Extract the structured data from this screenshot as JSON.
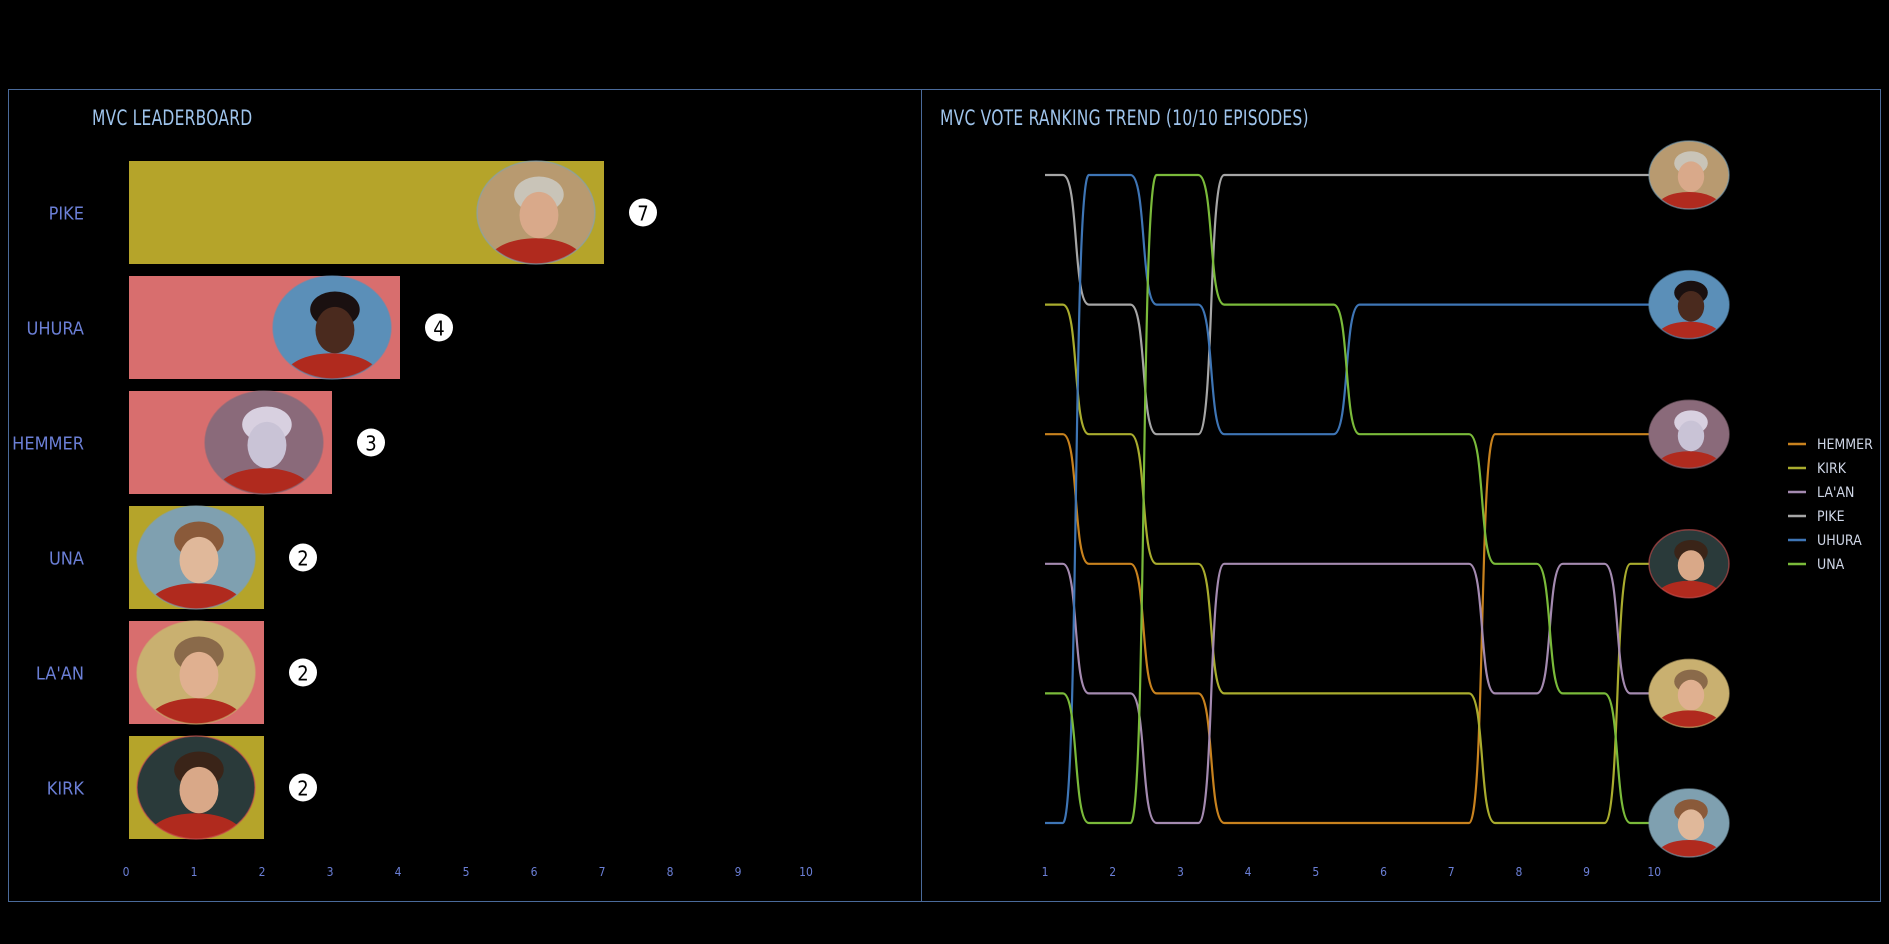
{
  "leaderboard": {
    "title": "MVC LEADERBOARD",
    "chart_data": {
      "type": "bar",
      "orientation": "horizontal",
      "categories": [
        "PIKE",
        "UHURA",
        "HEMMER",
        "UNA",
        "LA'AN",
        "KIRK"
      ],
      "values": [
        7,
        4,
        3,
        2,
        2,
        2
      ],
      "bar_colors": [
        "#b5a42a",
        "#d86e6e",
        "#d86e6e",
        "#b5a42a",
        "#d86e6e",
        "#b5a42a"
      ],
      "xlim": [
        0,
        10
      ],
      "xticks": [
        0,
        1,
        2,
        3,
        4,
        5,
        6,
        7,
        8,
        9,
        10
      ],
      "data_labels": [
        "7",
        "4",
        "3",
        "2",
        "2",
        "2"
      ],
      "grid": false
    }
  },
  "trend": {
    "title": "MVC VOTE RANKING TREND (10/10 EPISODES)",
    "chart_data": {
      "type": "line",
      "note_y": "rank 1 = top",
      "x": [
        1,
        2,
        3,
        4,
        5,
        6,
        7,
        8,
        9,
        10
      ],
      "xticks": [
        1,
        2,
        3,
        4,
        5,
        6,
        7,
        8,
        9,
        10
      ],
      "series": [
        {
          "name": "HEMMER",
          "color": "#c8821e",
          "ranks": [
            3,
            4,
            5,
            6,
            6,
            6,
            6,
            3,
            3,
            3
          ]
        },
        {
          "name": "KIRK",
          "color": "#a9ac2e",
          "ranks": [
            2,
            3,
            4,
            5,
            5,
            5,
            5,
            6,
            6,
            4
          ]
        },
        {
          "name": "LA'AN",
          "color": "#a48ab0",
          "ranks": [
            4,
            5,
            6,
            4,
            4,
            4,
            4,
            5,
            4,
            5
          ]
        },
        {
          "name": "PIKE",
          "color": "#a6a6a6",
          "ranks": [
            1,
            2,
            3,
            1,
            1,
            1,
            1,
            1,
            1,
            1
          ]
        },
        {
          "name": "UHURA",
          "color": "#3e75b5",
          "ranks": [
            6,
            1,
            2,
            3,
            3,
            2,
            2,
            2,
            2,
            2
          ]
        },
        {
          "name": "UNA",
          "color": "#7aba3a",
          "ranks": [
            5,
            6,
            1,
            2,
            2,
            3,
            3,
            4,
            5,
            6
          ]
        }
      ],
      "legend_position": "right",
      "end_avatars": [
        "PIKE",
        "UHURA",
        "HEMMER",
        "KIRK",
        "LA'AN",
        "UNA"
      ]
    }
  },
  "avatars": {
    "PIKE": {
      "bg": "#b89a70",
      "face": "#d9a98a",
      "hair": "#c9c4b8",
      "ring": "#7fa3b8"
    },
    "UHURA": {
      "bg": "#5b8fb8",
      "face": "#4a2a1e",
      "hair": "#1a1010",
      "ring": "#5b8fb8"
    },
    "HEMMER": {
      "bg": "#8a6a7a",
      "face": "#c9c3d6",
      "hair": "#d8d0e0",
      "ring": "#8a6a7a"
    },
    "UNA": {
      "bg": "#7fa0b0",
      "face": "#e0b89a",
      "hair": "#8a5a3a",
      "ring": "#7fa0b0"
    },
    "LA'AN": {
      "bg": "#c9b070",
      "face": "#e0b090",
      "hair": "#8a6a4a",
      "ring": "#c9b070"
    },
    "KIRK": {
      "bg": "#2a3a3a",
      "face": "#d9a888",
      "hair": "#3a2418",
      "ring": "#d05050"
    }
  }
}
